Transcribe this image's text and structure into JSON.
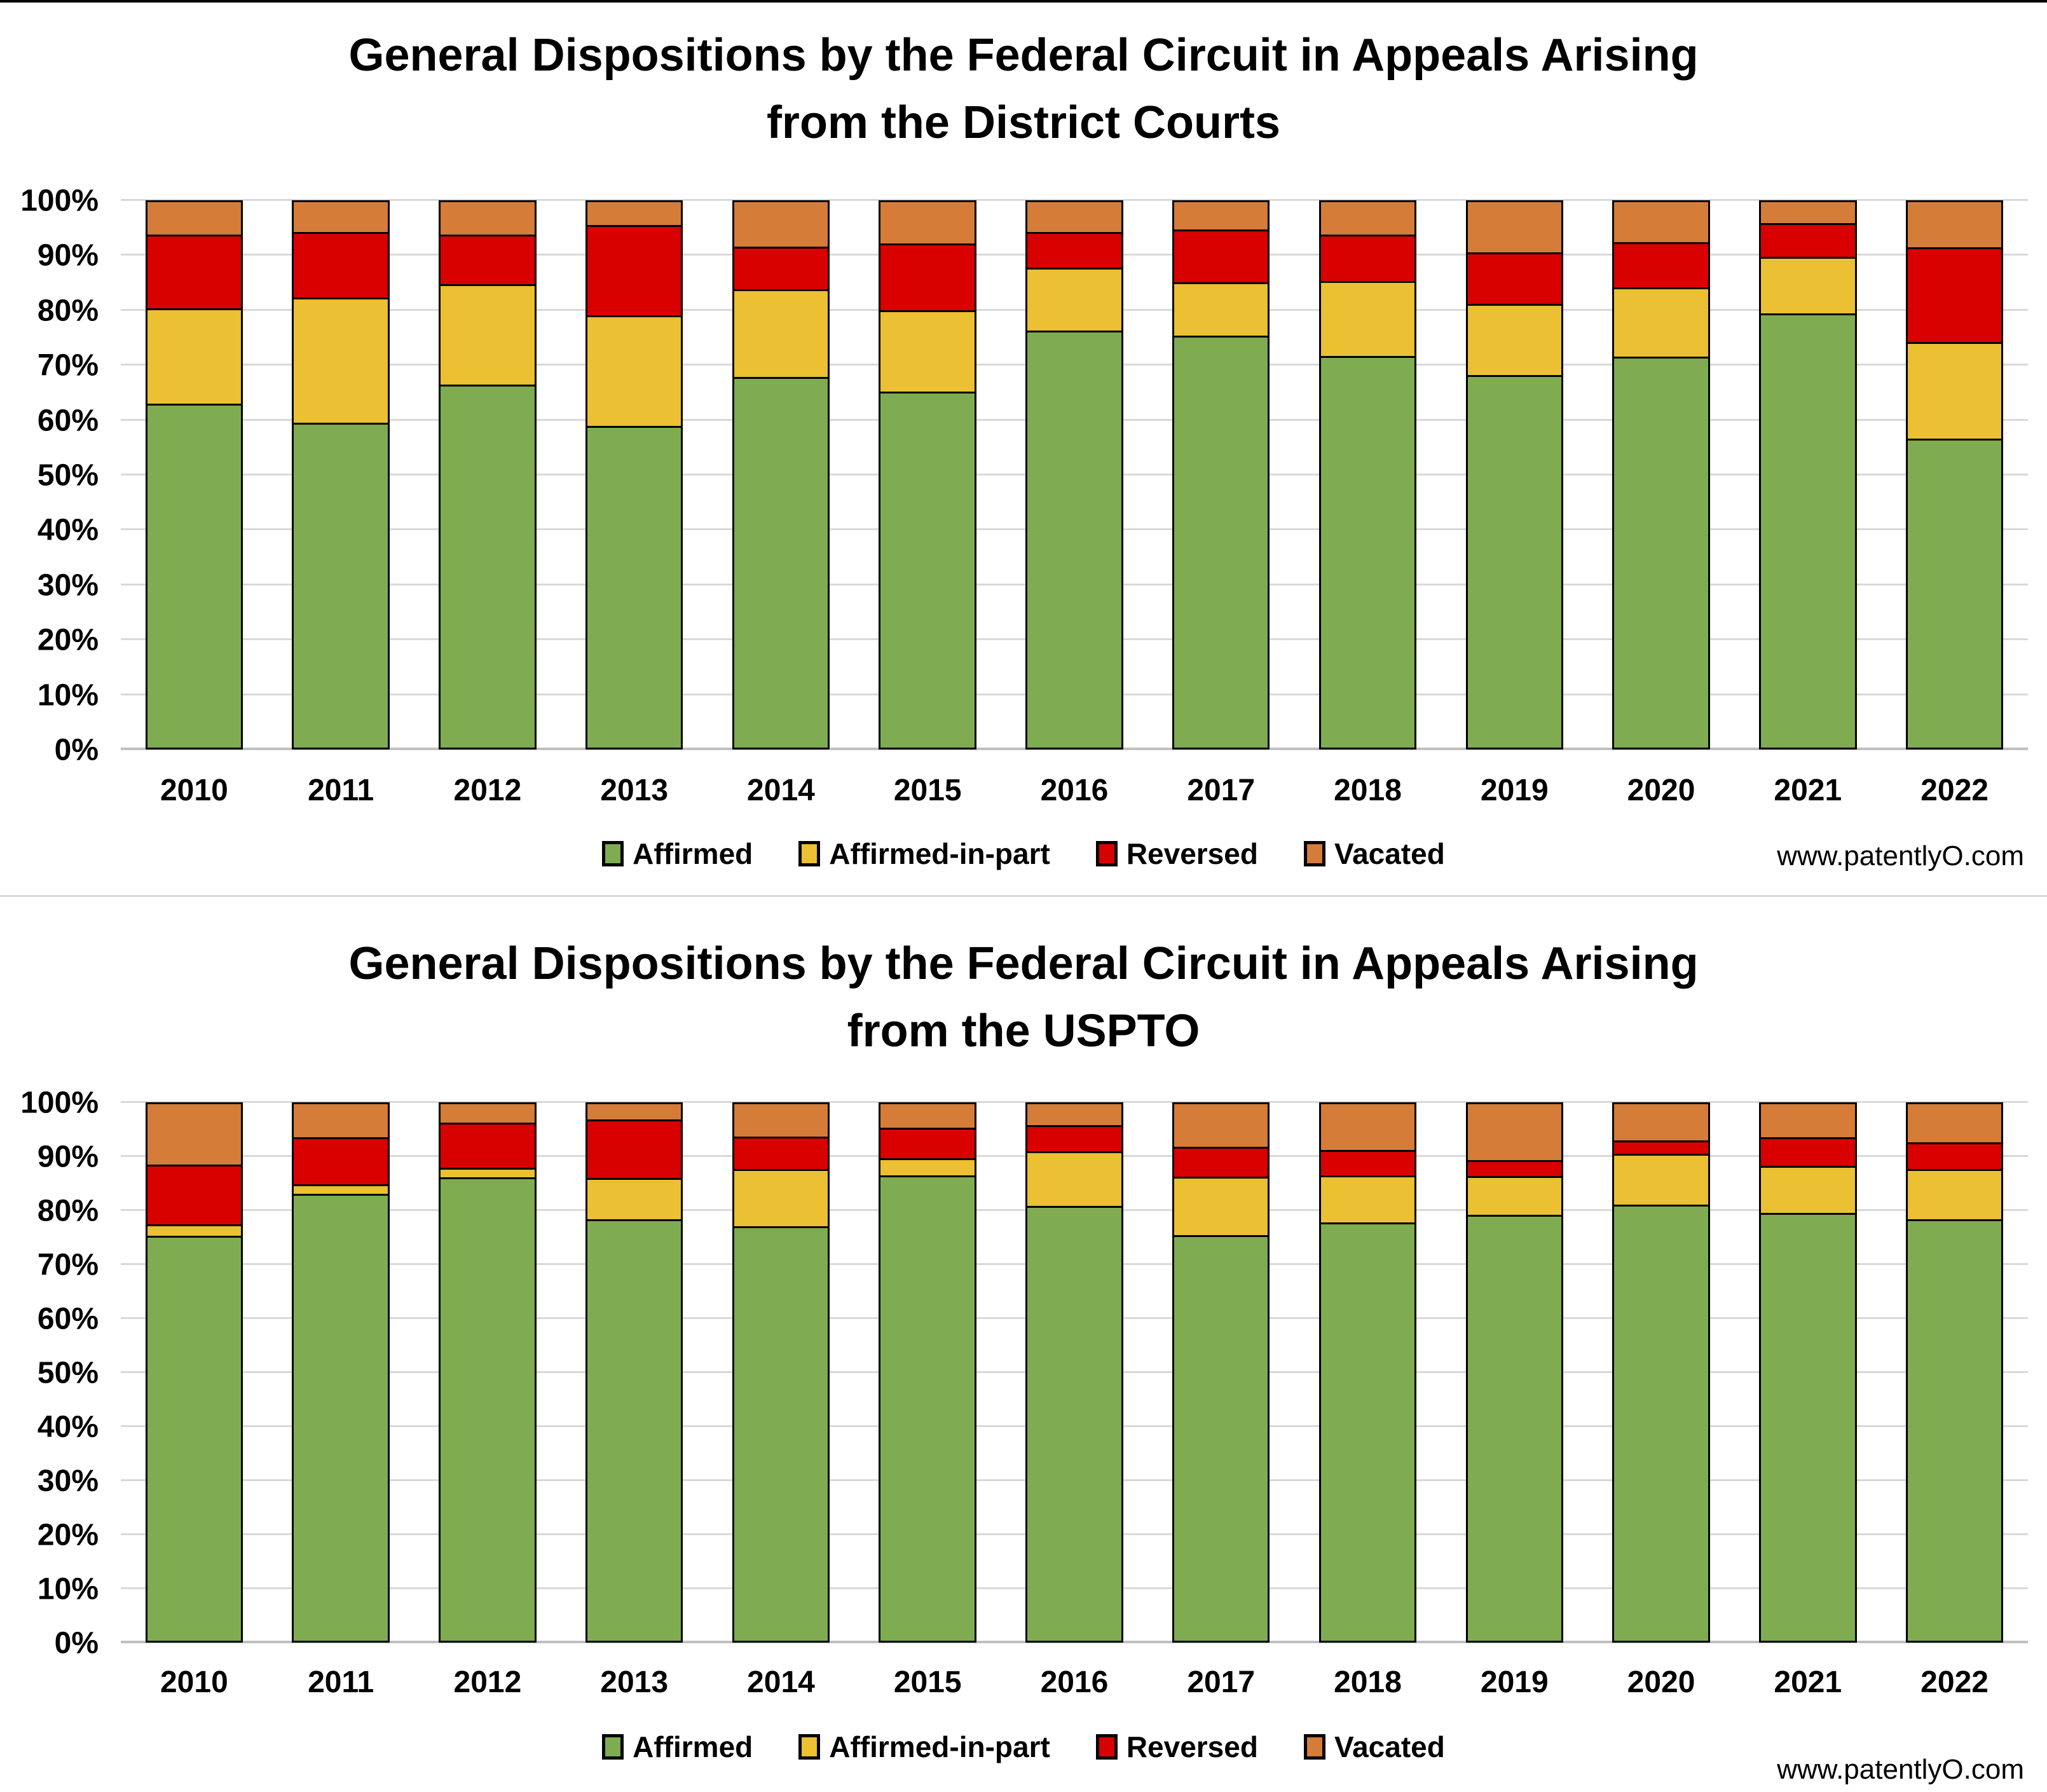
{
  "watermark": "www.patentlyO.com",
  "colors": {
    "affirmed": "#7FAC51",
    "affirmed_in_part": "#EBC032",
    "reversed": "#D90000",
    "vacated": "#D47C38",
    "border": "#000000",
    "gridline": "#D9D9D9",
    "axis_line": "#BFBFBF"
  },
  "legend": [
    {
      "label": "Affirmed",
      "color_key": "affirmed"
    },
    {
      "label": "Affirmed-in-part",
      "color_key": "affirmed_in_part"
    },
    {
      "label": "Reversed",
      "color_key": "reversed"
    },
    {
      "label": "Vacated",
      "color_key": "vacated"
    }
  ],
  "y_axis": {
    "min": 0,
    "max": 100,
    "tick_step": 10,
    "ticks": [
      "0%",
      "10%",
      "20%",
      "30%",
      "40%",
      "50%",
      "60%",
      "70%",
      "80%",
      "90%",
      "100%"
    ]
  },
  "chart_data": [
    {
      "type": "bar",
      "stacked": true,
      "units": "percent",
      "title_line1": "General Dispositions by the Federal Circuit in Appeals Arising",
      "title_line2": "from the District Courts",
      "categories": [
        "2010",
        "2011",
        "2012",
        "2013",
        "2014",
        "2015",
        "2016",
        "2017",
        "2018",
        "2019",
        "2020",
        "2021",
        "2022"
      ],
      "series": [
        {
          "name": "Affirmed",
          "color_key": "affirmed",
          "values": [
            63.0,
            59.5,
            66.5,
            59.0,
            68.0,
            65.3,
            76.4,
            75.5,
            71.8,
            68.3,
            71.7,
            79.6,
            56.6
          ]
        },
        {
          "name": "Affirmed-in-part",
          "color_key": "affirmed_in_part",
          "values": [
            17.5,
            23.0,
            18.5,
            20.3,
            16.0,
            14.9,
            11.6,
            9.8,
            13.7,
            13.0,
            12.7,
            10.4,
            17.8
          ]
        },
        {
          "name": "Reversed",
          "color_key": "reversed",
          "values": [
            13.5,
            12.0,
            9.0,
            16.5,
            7.8,
            12.2,
            6.5,
            9.7,
            8.5,
            9.5,
            8.3,
            6.1,
            17.3
          ]
        },
        {
          "name": "Vacated",
          "color_key": "vacated",
          "values": [
            6.0,
            5.5,
            6.0,
            4.2,
            8.2,
            7.6,
            5.5,
            5.0,
            6.0,
            9.2,
            7.3,
            3.9,
            8.3
          ]
        }
      ],
      "ylim": [
        0,
        100
      ],
      "grid": true,
      "legend_position": "bottom"
    },
    {
      "type": "bar",
      "stacked": true,
      "units": "percent",
      "title_line1": "General Dispositions by the Federal Circuit in Appeals Arising",
      "title_line2": "from the USPTO",
      "categories": [
        "2010",
        "2011",
        "2012",
        "2013",
        "2014",
        "2015",
        "2016",
        "2017",
        "2018",
        "2019",
        "2020",
        "2021",
        "2022"
      ],
      "series": [
        {
          "name": "Affirmed",
          "color_key": "affirmed",
          "values": [
            75.5,
            83.3,
            86.4,
            78.5,
            77.3,
            86.7,
            81.0,
            75.6,
            78.0,
            79.4,
            81.3,
            79.7,
            78.5
          ]
        },
        {
          "name": "Affirmed-in-part",
          "color_key": "affirmed_in_part",
          "values": [
            2.1,
            1.8,
            1.8,
            7.7,
            10.6,
            3.2,
            10.2,
            10.9,
            8.7,
            7.2,
            9.5,
            8.8,
            9.4
          ]
        },
        {
          "name": "Reversed",
          "color_key": "reversed",
          "values": [
            11.2,
            8.7,
            8.4,
            11.0,
            6.1,
            5.7,
            4.9,
            5.6,
            4.8,
            3.0,
            2.5,
            5.3,
            5.0
          ]
        },
        {
          "name": "Vacated",
          "color_key": "vacated",
          "values": [
            11.2,
            6.2,
            3.4,
            2.8,
            6.0,
            4.4,
            3.9,
            7.9,
            8.5,
            10.4,
            6.7,
            6.2,
            7.1
          ]
        }
      ],
      "ylim": [
        0,
        100
      ],
      "grid": true,
      "legend_position": "bottom"
    }
  ]
}
